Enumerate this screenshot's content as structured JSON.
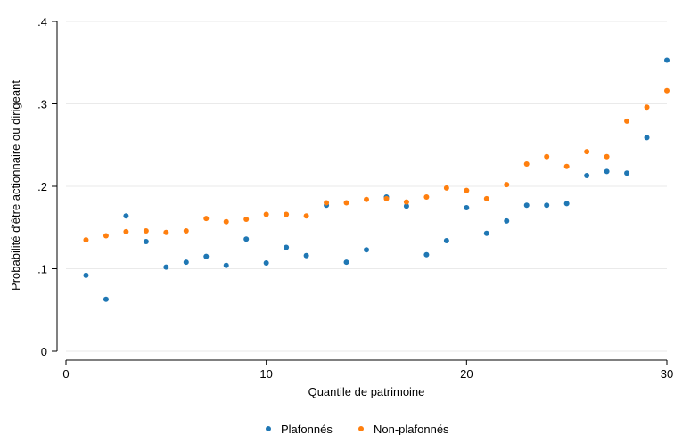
{
  "chart_data": {
    "type": "scatter",
    "title": "",
    "xlabel": "Quantile de patrimoine",
    "ylabel": "Probabilité d'être actionnaire ou dirigeant",
    "xlim": [
      0,
      30
    ],
    "ylim": [
      0,
      0.4
    ],
    "xticks": [
      {
        "value": 0,
        "label": "0"
      },
      {
        "value": 10,
        "label": "10"
      },
      {
        "value": 20,
        "label": "20"
      },
      {
        "value": 30,
        "label": "30"
      }
    ],
    "yticks": [
      {
        "value": 0,
        "label": "0"
      },
      {
        "value": 0.1,
        "label": ".1"
      },
      {
        "value": 0.2,
        "label": ".2"
      },
      {
        "value": 0.3,
        "label": ".3"
      },
      {
        "value": 0.4,
        "label": ".4"
      }
    ],
    "grid": "horizontal",
    "legend_position": "bottom",
    "series": [
      {
        "name": "Plafonnés",
        "color": "#1f77b4",
        "x": [
          1,
          2,
          3,
          4,
          5,
          6,
          7,
          8,
          9,
          10,
          11,
          12,
          13,
          14,
          15,
          16,
          17,
          18,
          19,
          20,
          21,
          22,
          23,
          24,
          25,
          26,
          27,
          28,
          29,
          30
        ],
        "y": [
          0.092,
          0.063,
          0.164,
          0.133,
          0.102,
          0.108,
          0.115,
          0.104,
          0.136,
          0.107,
          0.126,
          0.116,
          0.177,
          0.108,
          0.123,
          0.187,
          0.176,
          0.117,
          0.134,
          0.174,
          0.143,
          0.158,
          0.177,
          0.177,
          0.179,
          0.213,
          0.218,
          0.216,
          0.259,
          0.353
        ]
      },
      {
        "name": "Non-plafonnés",
        "color": "#ff7f0e",
        "x": [
          1,
          2,
          3,
          4,
          5,
          6,
          7,
          8,
          9,
          10,
          11,
          12,
          13,
          14,
          15,
          16,
          17,
          18,
          19,
          20,
          21,
          22,
          23,
          24,
          25,
          26,
          27,
          28,
          29,
          30
        ],
        "y": [
          0.135,
          0.14,
          0.145,
          0.146,
          0.144,
          0.146,
          0.161,
          0.157,
          0.16,
          0.166,
          0.166,
          0.164,
          0.18,
          0.18,
          0.184,
          0.185,
          0.181,
          0.187,
          0.198,
          0.195,
          0.185,
          0.202,
          0.227,
          0.236,
          0.224,
          0.242,
          0.236,
          0.279,
          0.296,
          0.316
        ]
      }
    ]
  }
}
